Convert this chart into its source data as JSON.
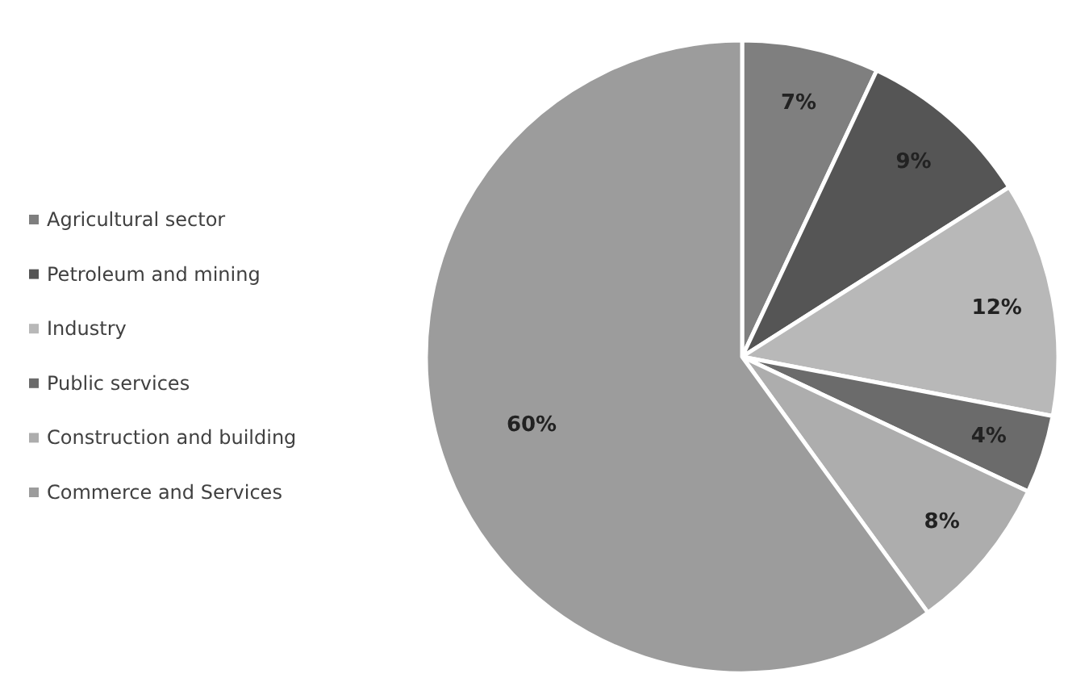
{
  "chart_data": {
    "type": "pie",
    "categories": [
      "Agricultural sector",
      "Petroleum and mining",
      "Industry",
      "Public services",
      "Construction and building",
      "Commerce and Services"
    ],
    "values": [
      7,
      9,
      12,
      4,
      8,
      60
    ],
    "value_labels": [
      "7%",
      "9%",
      "12%",
      "4%",
      "8%",
      "60%"
    ],
    "colors": [
      "#7f7f7f",
      "#555555",
      "#b8b8b8",
      "#6b6b6b",
      "#adadad",
      "#9c9c9c"
    ],
    "legend": "left"
  }
}
